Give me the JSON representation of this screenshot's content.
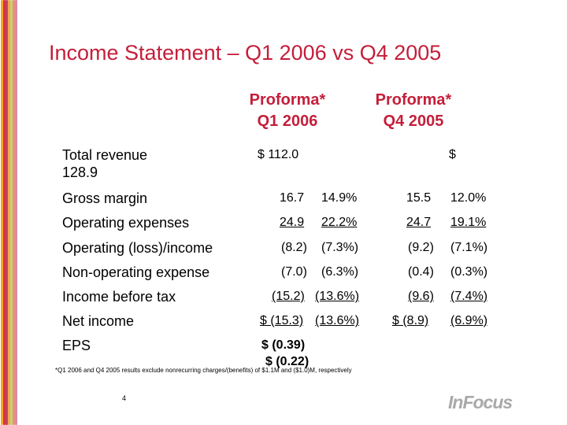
{
  "title": "Income Statement – Q1 2006 vs Q4 2005",
  "columns": {
    "q1": {
      "line1": "Proforma*",
      "line2": "Q1 2006"
    },
    "q4": {
      "line1": "Proforma*",
      "line2": "Q4 2005"
    }
  },
  "rows": {
    "total_revenue": {
      "label_line1": "Total revenue",
      "label_line2": "128.9",
      "q1": "$ 112.0",
      "q4": "$"
    },
    "gross_margin": {
      "label": "Gross margin",
      "q1_val": "16.7",
      "q1_pct": "14.9%",
      "q4_val": "15.5",
      "q4_pct": "12.0%"
    },
    "operating_expenses": {
      "label": "Operating expenses",
      "q1_val": "24.9",
      "q1_pct": "22.2%",
      "q4_val": "24.7",
      "q4_pct": "19.1%"
    },
    "operating_loss": {
      "label": "Operating (loss)/income",
      "q1_val": "(8.2)",
      "q1_pct": "(7.3%)",
      "q4_val": "(9.2)",
      "q4_pct": "(7.1%)"
    },
    "non_operating": {
      "label": "Non-operating expense",
      "q1_val": "(7.0)",
      "q1_pct": "(6.3%)",
      "q4_val": "(0.4)",
      "q4_pct": "(0.3%)"
    },
    "income_before_tax": {
      "label": "Income before tax",
      "q1_val": "(15.2)",
      "q1_pct": "(13.6%)",
      "q4_val": "(9.6)",
      "q4_pct": "(7.4%)"
    },
    "net_income": {
      "label": "Net income",
      "q1_val": "$ (15.3)",
      "q1_pct": "(13.6%)",
      "q4_val": "$  (8.9)",
      "q4_pct": "(6.9%)"
    },
    "eps": {
      "label": "EPS",
      "q1_val": "$   (0.39)",
      "q4_val": "$  (0.22)"
    }
  },
  "footnote": "*Q1 2006 and Q4 2005 results exclude nonrecurring charges/(benefits) of $1.1M and ($1.0)M, respectively",
  "page_number": "4",
  "logo_text": "InFocus",
  "colors": {
    "accent": "#c41e3a",
    "logo": "#a9a9a9"
  },
  "stripe_colors": [
    "#f6a623",
    "#d3232f",
    "#b71e4b",
    "#f18a1f",
    "#a8bd2b",
    "#e0442a",
    "#c2185b"
  ]
}
